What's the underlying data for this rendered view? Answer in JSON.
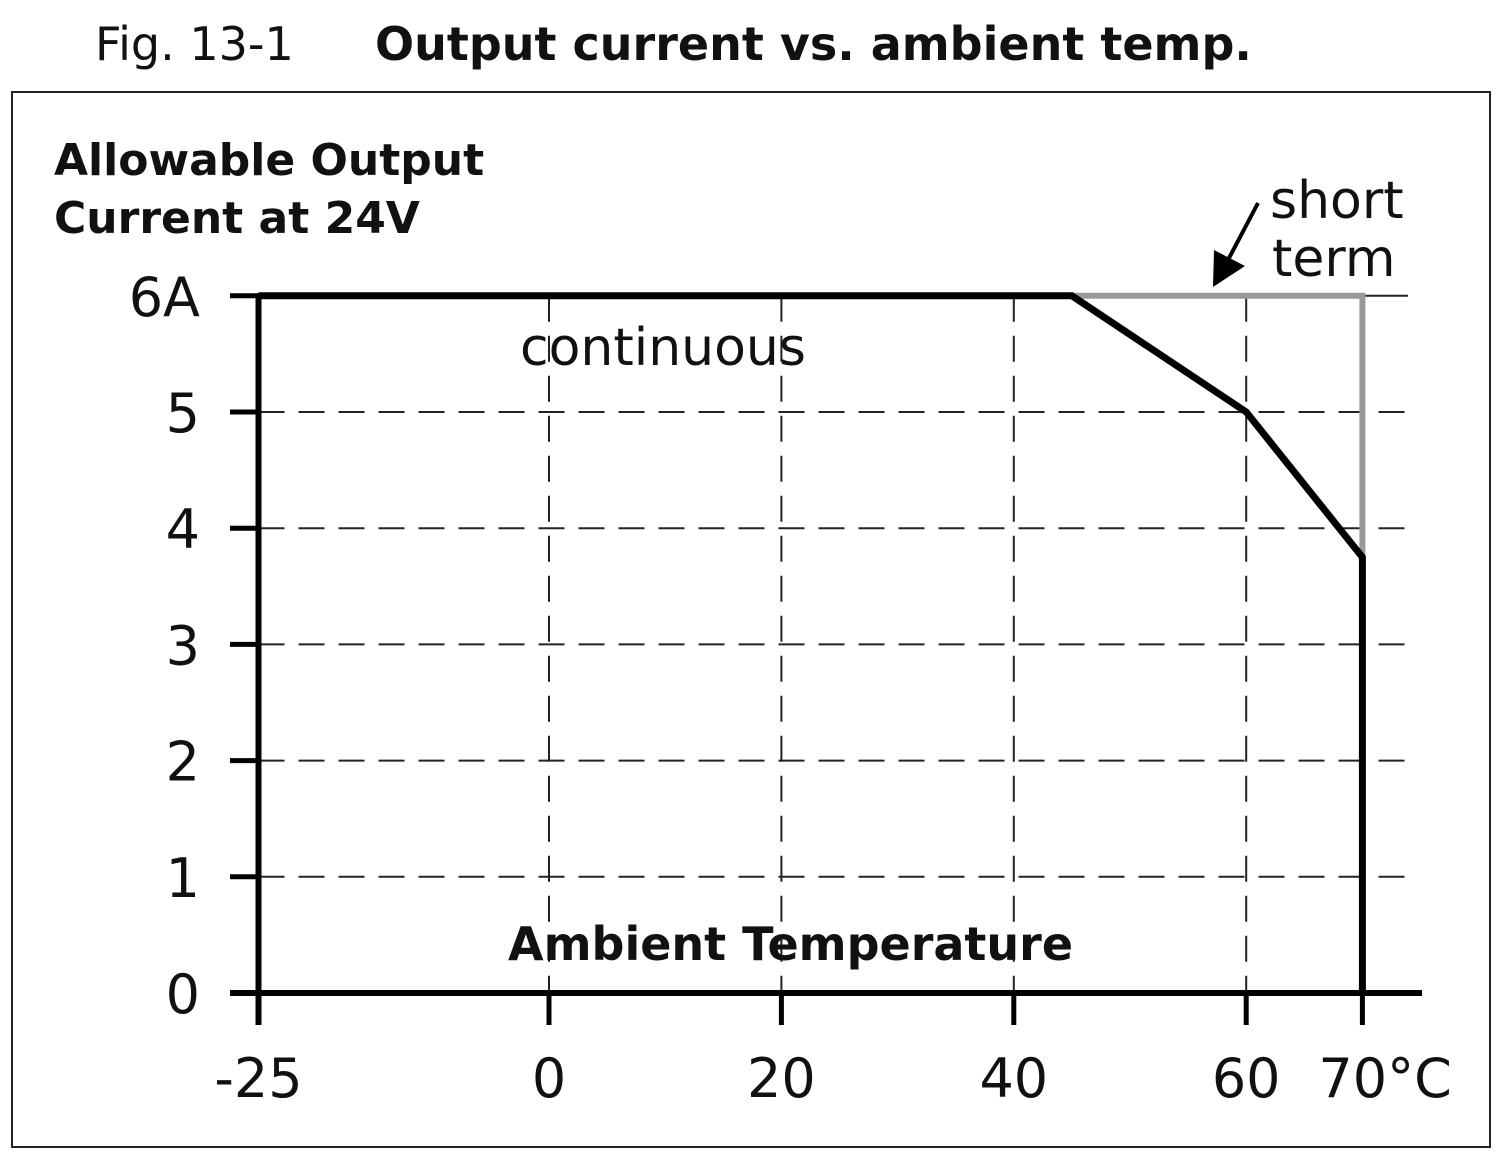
{
  "figure": {
    "number": "Fig. 13-1",
    "title": "Output current vs. ambient temp."
  },
  "chart_data": {
    "type": "line",
    "title": "Output current vs. ambient temp.",
    "ylabel_line1": "Allowable Output",
    "ylabel_line2": "Current at 24V",
    "xlabel": "Ambient Temperature",
    "x_ticks": [
      -25,
      0,
      20,
      40,
      60,
      70
    ],
    "x_tick_labels": [
      "-25",
      "0",
      "20",
      "40",
      "60",
      "70°C"
    ],
    "y_ticks": [
      0,
      1,
      2,
      3,
      4,
      5,
      6
    ],
    "y_tick_labels": [
      "0",
      "1",
      "2",
      "3",
      "4",
      "5",
      "6A"
    ],
    "xlim": [
      -25,
      70
    ],
    "ylim": [
      0,
      6
    ],
    "grid": "dashed",
    "series": [
      {
        "name": "continuous",
        "color": "#000000",
        "x": [
          -25,
          45,
          60,
          70,
          70
        ],
        "y": [
          6,
          6,
          5,
          3.75,
          0
        ]
      },
      {
        "name": "short term",
        "color": "#999999",
        "x": [
          45,
          70,
          70
        ],
        "y": [
          6,
          6,
          3.75
        ]
      }
    ],
    "annotations": {
      "continuous": "continuous",
      "short_line1": "short",
      "short_line2": "term"
    }
  }
}
